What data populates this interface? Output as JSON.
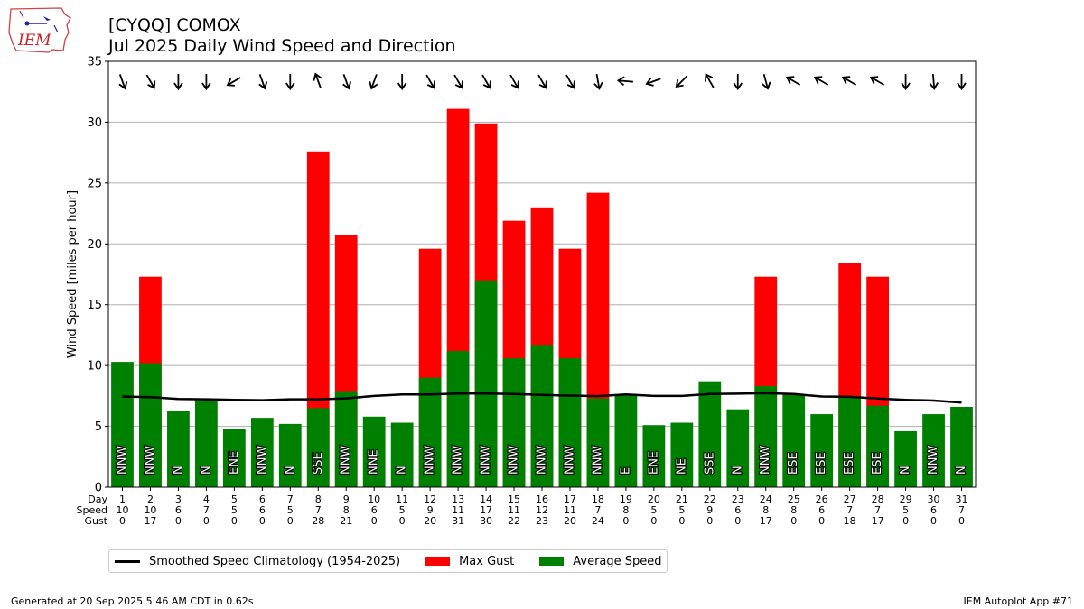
{
  "header": {
    "title": "[CYQQ] COMOX",
    "subtitle": "Jul 2025 Daily Wind Speed and Direction"
  },
  "logo": {
    "text": "IEM"
  },
  "footer": {
    "generated": "Generated at 20 Sep 2025 5:46 AM CDT in 0.62s",
    "app": "IEM Autoplot App #71"
  },
  "colors": {
    "avg": "#008000",
    "gust": "#ff0000",
    "clim": "#000000",
    "grid": "#b0b0b0"
  },
  "chart_data": {
    "type": "bar",
    "ylabel": "Wind Speed [miles per hour]",
    "ylim": [
      0,
      35
    ],
    "yticks": [
      0,
      5,
      10,
      15,
      20,
      25,
      30,
      35
    ],
    "grid": true,
    "legend_position": "bottom",
    "row_labels": [
      "Day",
      "Speed",
      "Gust"
    ],
    "days": [
      1,
      2,
      3,
      4,
      5,
      6,
      7,
      8,
      9,
      10,
      11,
      12,
      13,
      14,
      15,
      16,
      17,
      18,
      19,
      20,
      21,
      22,
      23,
      24,
      25,
      26,
      27,
      28,
      29,
      30,
      31
    ],
    "speed_labels": [
      10,
      10,
      6,
      7,
      5,
      6,
      5,
      7,
      8,
      6,
      5,
      9,
      11,
      17,
      11,
      12,
      11,
      7,
      8,
      5,
      5,
      9,
      6,
      8,
      8,
      6,
      7,
      7,
      5,
      6,
      7
    ],
    "gust_labels": [
      0,
      17,
      0,
      0,
      0,
      0,
      0,
      28,
      21,
      0,
      0,
      20,
      31,
      30,
      22,
      23,
      20,
      24,
      0,
      0,
      0,
      0,
      0,
      17,
      0,
      0,
      18,
      17,
      0,
      0,
      0
    ],
    "series": [
      {
        "name": "Average Speed",
        "values": [
          10.3,
          10.2,
          6.3,
          7.2,
          4.8,
          5.7,
          5.2,
          6.5,
          7.9,
          5.8,
          5.3,
          9.0,
          11.2,
          17.0,
          10.6,
          11.7,
          10.6,
          7.3,
          7.6,
          5.1,
          5.3,
          8.7,
          6.4,
          8.3,
          7.6,
          6.0,
          7.4,
          6.7,
          4.6,
          6.0,
          6.6
        ]
      },
      {
        "name": "Max Gust",
        "values": [
          0,
          17.3,
          0,
          0,
          0,
          0,
          0,
          27.6,
          20.7,
          0,
          0,
          19.6,
          31.1,
          29.9,
          21.9,
          23.0,
          19.6,
          24.2,
          0,
          0,
          0,
          0,
          0,
          17.3,
          0,
          0,
          18.4,
          17.3,
          0,
          0,
          0
        ]
      },
      {
        "name": "Smoothed Speed Climatology (1954-2025)",
        "values": [
          7.45,
          7.4,
          7.25,
          7.22,
          7.18,
          7.15,
          7.22,
          7.22,
          7.3,
          7.5,
          7.62,
          7.62,
          7.7,
          7.7,
          7.65,
          7.58,
          7.52,
          7.48,
          7.62,
          7.5,
          7.5,
          7.65,
          7.68,
          7.72,
          7.65,
          7.45,
          7.42,
          7.28,
          7.18,
          7.12,
          6.95
        ]
      }
    ],
    "direction_labels": [
      "NNW",
      "NNW",
      "N",
      "N",
      "ENE",
      "NNW",
      "N",
      "SSE",
      "NNW",
      "NNE",
      "N",
      "NNW",
      "NNW",
      "NNW",
      "NNW",
      "NNW",
      "NNW",
      "NNW",
      "E",
      "ENE",
      "NE",
      "SSE",
      "N",
      "NNW",
      "ESE",
      "ESE",
      "ESE",
      "ESE",
      "N",
      "NNW",
      "N"
    ],
    "arrow_angles_deg": [
      160,
      150,
      180,
      180,
      240,
      160,
      180,
      340,
      160,
      200,
      180,
      150,
      150,
      150,
      150,
      150,
      150,
      170,
      275,
      250,
      225,
      330,
      180,
      165,
      300,
      300,
      300,
      300,
      180,
      175,
      180
    ]
  }
}
